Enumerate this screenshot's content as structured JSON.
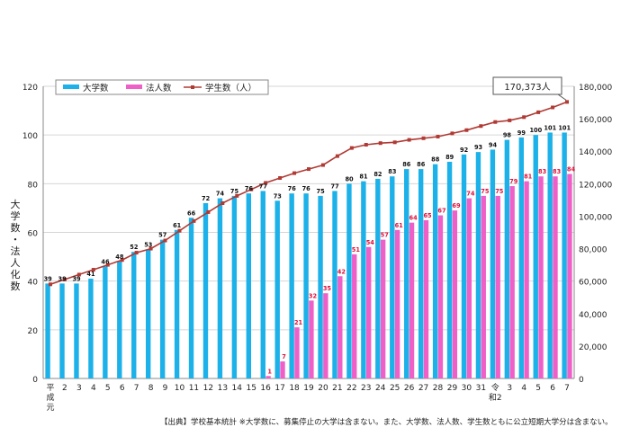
{
  "chart_data": {
    "type": "bar+line",
    "categories": [
      "平成元",
      "2",
      "3",
      "4",
      "5",
      "6",
      "7",
      "8",
      "9",
      "10",
      "11",
      "12",
      "13",
      "14",
      "15",
      "16",
      "17",
      "18",
      "19",
      "20",
      "21",
      "22",
      "23",
      "24",
      "25",
      "26",
      "27",
      "28",
      "29",
      "30",
      "31",
      "令和2",
      "3",
      "4",
      "5",
      "6",
      "7"
    ],
    "series": [
      {
        "name": "大学数",
        "type": "bar",
        "color": "#1cb1e8",
        "axis": "left",
        "values": [
          39,
          39,
          39,
          41,
          46,
          48,
          52,
          53,
          57,
          61,
          66,
          72,
          74,
          75,
          76,
          77,
          73,
          76,
          76,
          75,
          77,
          80,
          81,
          82,
          83,
          86,
          86,
          88,
          89,
          92,
          93,
          94,
          98,
          99,
          100,
          101,
          101
        ],
        "labels": [
          "39",
          "39",
          "39",
          "41",
          "46",
          "48",
          "52",
          "53",
          "57",
          "61",
          "66",
          "72",
          "74",
          "75",
          "76",
          "77",
          "73",
          "76",
          "76",
          "75",
          "77",
          "80",
          "81",
          "82",
          "83",
          "86",
          "86",
          "88",
          "89",
          "92",
          "93",
          "94",
          "98",
          "99",
          "100",
          "101",
          "101"
        ]
      },
      {
        "name": "法人数",
        "type": "bar",
        "color": "#ef5fc8",
        "axis": "left",
        "values": [
          0,
          0,
          0,
          0,
          0,
          0,
          0,
          0,
          0,
          0,
          0,
          0,
          0,
          0,
          0,
          1,
          7,
          21,
          32,
          35,
          42,
          51,
          54,
          57,
          61,
          64,
          65,
          67,
          69,
          74,
          75,
          75,
          79,
          81,
          83,
          83,
          84
        ],
        "labels": [
          "",
          "",
          "",
          "",
          "",
          "",
          "",
          "",
          "",
          "",
          "",
          "",
          "",
          "",
          "",
          "1",
          "7",
          "21",
          "32",
          "35",
          "42",
          "51",
          "54",
          "57",
          "61",
          "64",
          "65",
          "67",
          "69",
          "74",
          "75",
          "75",
          "79",
          "81",
          "83",
          "83",
          "84"
        ]
      },
      {
        "name": "学生数（人）",
        "type": "line",
        "color": "#b03a34",
        "axis": "right",
        "values": [
          58000,
          61000,
          64000,
          67000,
          70000,
          73000,
          77500,
          80000,
          85000,
          91000,
          97000,
          102500,
          108000,
          112500,
          116500,
          120500,
          123500,
          126500,
          129000,
          131500,
          137000,
          142000,
          144000,
          145000,
          145500,
          147000,
          148000,
          149000,
          151000,
          153000,
          155500,
          158000,
          159000,
          161000,
          164000,
          167000,
          170373
        ]
      }
    ],
    "y_left": {
      "min": 0,
      "max": 120,
      "step": 20,
      "ticks": [
        "0",
        "20",
        "40",
        "60",
        "80",
        "100",
        "120"
      ]
    },
    "y_right": {
      "min": 0,
      "max": 180000,
      "step": 20000,
      "ticks": [
        "0",
        "20,000",
        "40,000",
        "60,000",
        "80,000",
        "100,000",
        "120,000",
        "140,000",
        "160,000",
        "180,000"
      ]
    },
    "ylabel": "大学数・法人化数",
    "legend": {
      "placement": "top-left",
      "items": [
        "大学数",
        "法人数",
        "学生数（人）"
      ]
    },
    "callout": "170,373人",
    "grid": true
  },
  "footnote": "【出典】学校基本統計 ※大学数に、募集停止の大学は含まない。また、大学数、法人数、学生数ともに公立短期大学分は含まない。"
}
